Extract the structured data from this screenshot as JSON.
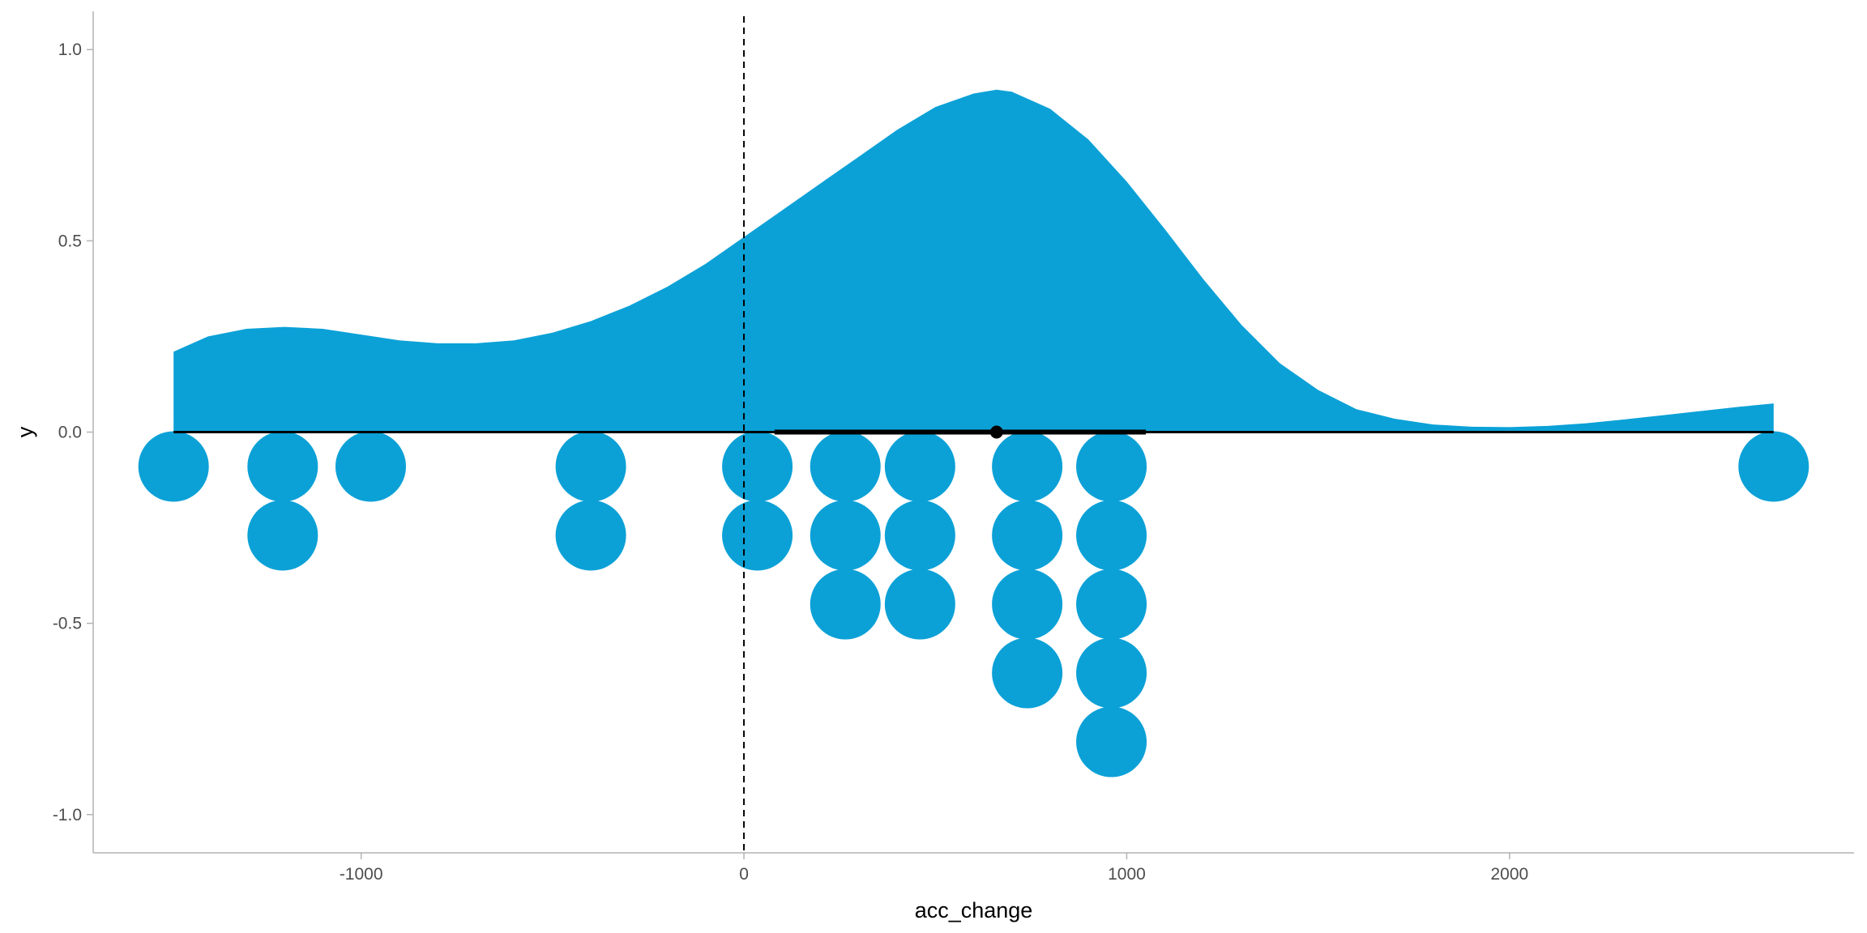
{
  "chart_data": {
    "type": "area",
    "title": "",
    "xlabel": "acc_change",
    "ylabel": "y",
    "xlim": [
      -1700,
      2900
    ],
    "ylim": [
      -1.1,
      1.1
    ],
    "x_ticks": [
      -1000,
      0,
      1000,
      2000
    ],
    "x_tick_labels": [
      "-1000",
      "0",
      "1000",
      "2000"
    ],
    "y_ticks": [
      -1.0,
      -0.5,
      0.0,
      0.5,
      1.0
    ],
    "y_tick_labels": [
      "-1.0",
      "-0.5",
      "0.0",
      "0.5",
      "1.0"
    ],
    "grid": false,
    "reference_line_x": 0,
    "density": {
      "x": [
        -1490,
        -1400,
        -1300,
        -1200,
        -1100,
        -1000,
        -900,
        -800,
        -700,
        -600,
        -500,
        -400,
        -300,
        -200,
        -100,
        0,
        100,
        200,
        300,
        400,
        500,
        600,
        660,
        700,
        800,
        900,
        1000,
        1100,
        1200,
        1300,
        1400,
        1500,
        1600,
        1700,
        1800,
        1900,
        2000,
        2100,
        2200,
        2300,
        2400,
        2500,
        2600,
        2690
      ],
      "y": [
        0.21,
        0.25,
        0.27,
        0.275,
        0.27,
        0.255,
        0.24,
        0.232,
        0.232,
        0.24,
        0.26,
        0.29,
        0.33,
        0.38,
        0.44,
        0.51,
        0.58,
        0.65,
        0.72,
        0.79,
        0.85,
        0.885,
        0.895,
        0.89,
        0.845,
        0.765,
        0.655,
        0.53,
        0.4,
        0.28,
        0.18,
        0.11,
        0.06,
        0.035,
        0.02,
        0.014,
        0.013,
        0.016,
        0.023,
        0.033,
        0.044,
        0.055,
        0.066,
        0.075
      ]
    },
    "point_interval": {
      "point": 660,
      "thick": [
        80,
        1050
      ],
      "thin": [
        -1490,
        2690
      ]
    },
    "dots": {
      "columns": [
        {
          "x": -1490,
          "count": 1
        },
        {
          "x": -1205,
          "count": 2
        },
        {
          "x": -975,
          "count": 1
        },
        {
          "x": -400,
          "count": 2
        },
        {
          "x": 35,
          "count": 2
        },
        {
          "x": 265,
          "count": 3
        },
        {
          "x": 460,
          "count": 3
        },
        {
          "x": 740,
          "count": 4
        },
        {
          "x": 960,
          "count": 5
        },
        {
          "x": 2690,
          "count": 1
        }
      ],
      "row_step": 0.18
    },
    "colors": {
      "fill": "#0ba1d7",
      "line": "#000000",
      "axis": "#b3b3b3",
      "text": "#4d4d4d"
    }
  }
}
